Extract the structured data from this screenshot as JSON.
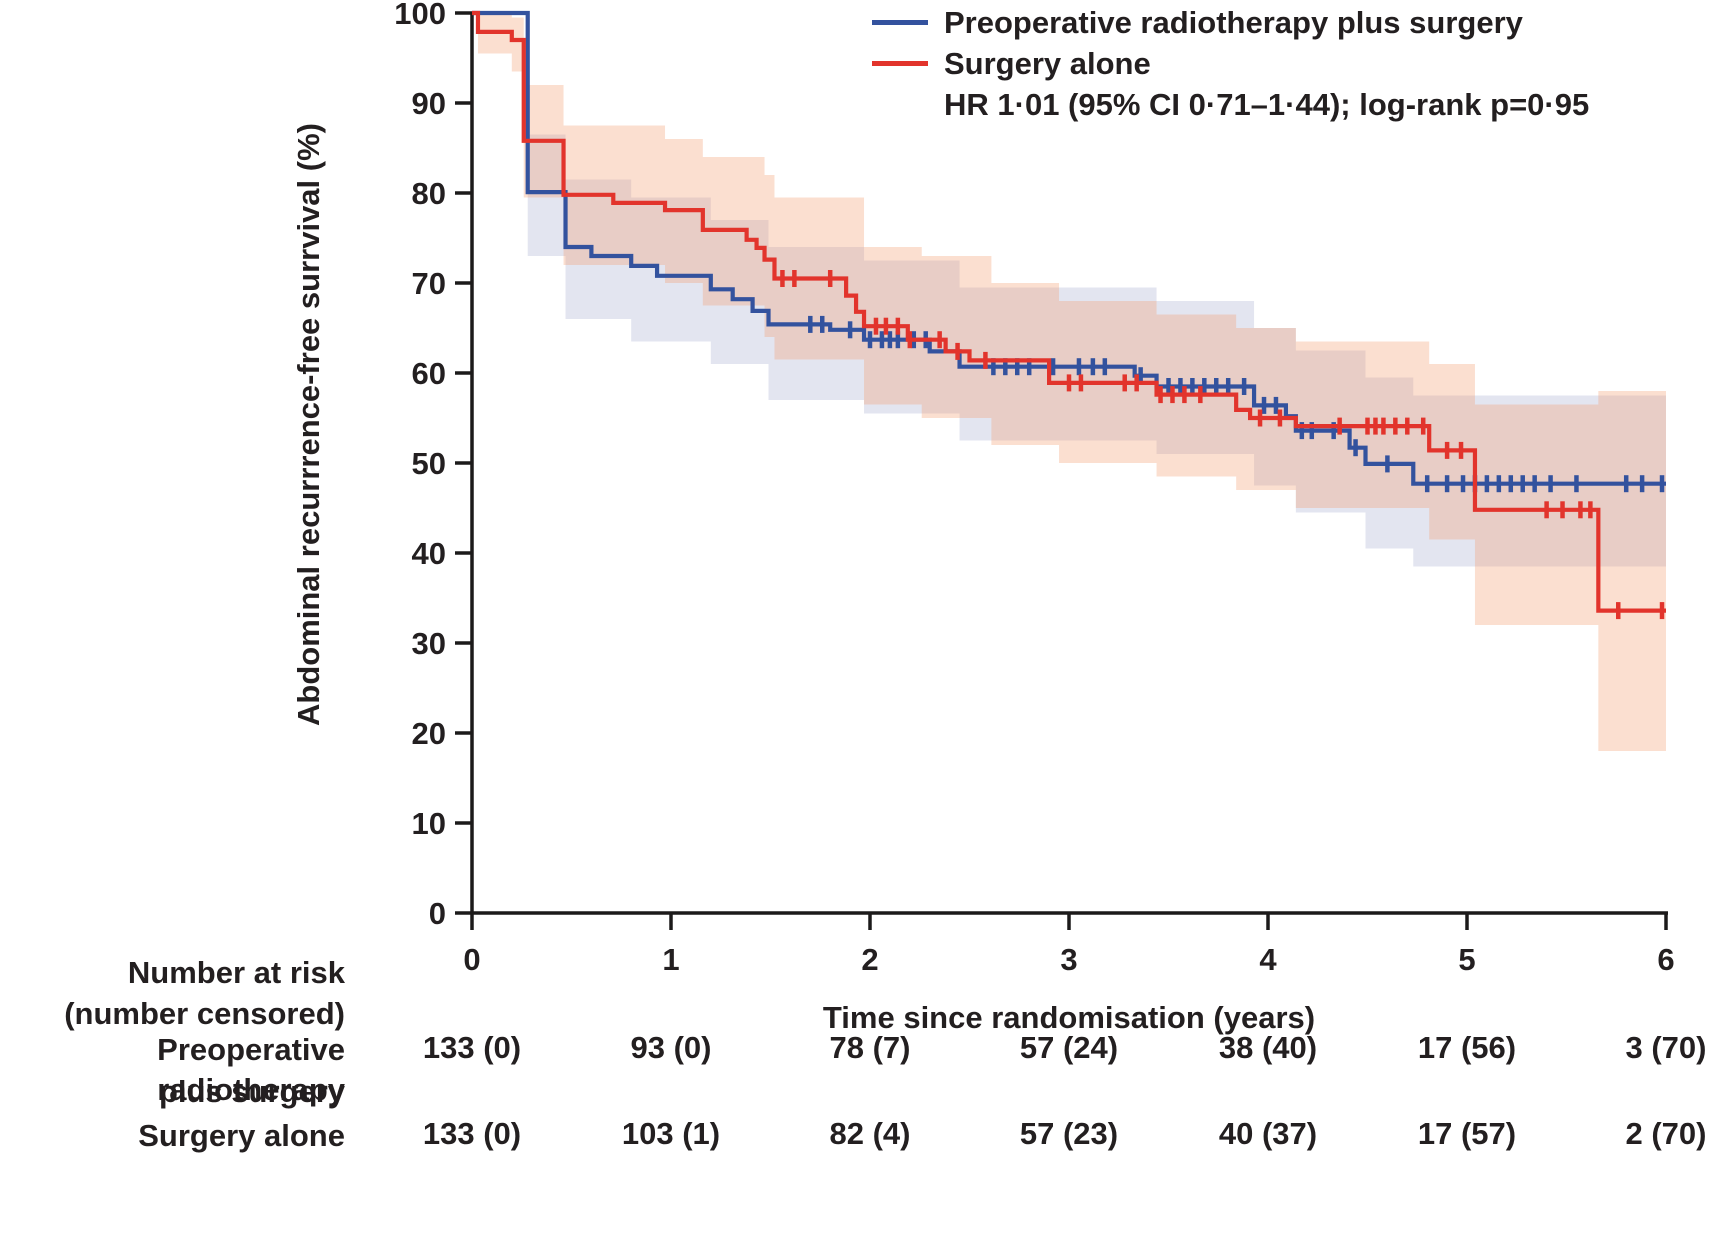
{
  "figure": {
    "ylabel": "Abdominal recurrrence-free surrvival (%)",
    "xlabel": "Time since randomisation (years)"
  },
  "chart_data": {
    "type": "line",
    "variant": "kaplan-meier-step-with-confidence-bands",
    "title": "",
    "xlabel": "Time since randomisation (years)",
    "ylabel": "Abdominal recurrrence-free surrvival (%)",
    "xlim": [
      0,
      6
    ],
    "ylim": [
      0,
      100
    ],
    "x_ticks": [
      0,
      1,
      2,
      3,
      4,
      5,
      6
    ],
    "y_ticks": [
      0,
      10,
      20,
      30,
      40,
      50,
      60,
      70,
      80,
      90,
      100
    ],
    "grid": false,
    "legend_position": "top-right",
    "annotation": "HR 1·01 (95% CI 0·71–1·44); log-rank p=0·95",
    "axis_color": "#1c1a1a",
    "series": [
      {
        "name": "Preoperative radiotherapy plus surgery",
        "color": "#33529e",
        "ci_fill": "#e3e5f0",
        "steps": [
          [
            0,
            100
          ],
          [
            0.28,
            80.1
          ],
          [
            0.47,
            74.0
          ],
          [
            0.6,
            73.0
          ],
          [
            0.8,
            71.9
          ],
          [
            0.93,
            70.8
          ],
          [
            1.2,
            69.3
          ],
          [
            1.31,
            68.2
          ],
          [
            1.41,
            66.9
          ],
          [
            1.49,
            65.4
          ],
          [
            1.8,
            64.8
          ],
          [
            1.97,
            63.7
          ],
          [
            2.3,
            62.4
          ],
          [
            2.45,
            60.7
          ],
          [
            3.33,
            59.7
          ],
          [
            3.44,
            58.5
          ],
          [
            3.93,
            56.4
          ],
          [
            4.09,
            55.2
          ],
          [
            4.14,
            53.6
          ],
          [
            4.41,
            51.7
          ],
          [
            4.49,
            49.9
          ],
          [
            4.73,
            47.7
          ]
        ],
        "end_time": 6.0,
        "censor_times": [
          1.7,
          1.76,
          1.9,
          2.0,
          2.06,
          2.1,
          2.14,
          2.22,
          2.28,
          2.62,
          2.68,
          2.74,
          2.8,
          2.92,
          3.05,
          3.12,
          3.18,
          3.36,
          3.5,
          3.56,
          3.62,
          3.68,
          3.74,
          3.8,
          3.88,
          3.98,
          4.04,
          4.17,
          4.22,
          4.33,
          4.44,
          4.6,
          4.8,
          4.9,
          4.98,
          5.04,
          5.1,
          5.16,
          5.22,
          5.28,
          5.34,
          5.42,
          5.55,
          5.8,
          5.88,
          5.98
        ],
        "ci_steps": [
          [
            0.28,
            86.5,
            73.0
          ],
          [
            0.47,
            81.5,
            66.0
          ],
          [
            0.8,
            79.5,
            63.5
          ],
          [
            1.2,
            77.0,
            61.0
          ],
          [
            1.49,
            74.0,
            57.0
          ],
          [
            1.97,
            72.5,
            55.5
          ],
          [
            2.45,
            69.5,
            52.5
          ],
          [
            3.44,
            68.0,
            51.0
          ],
          [
            3.93,
            65.0,
            47.5
          ],
          [
            4.14,
            62.5,
            44.5
          ],
          [
            4.49,
            59.5,
            40.5
          ],
          [
            4.73,
            57.5,
            38.5
          ]
        ]
      },
      {
        "name": "Surgery alone",
        "color": "#e2342c",
        "ci_fill": "rgba(243,158,112,0.33)",
        "steps": [
          [
            0,
            100
          ],
          [
            0.03,
            97.9
          ],
          [
            0.2,
            97.0
          ],
          [
            0.26,
            85.8
          ],
          [
            0.46,
            79.8
          ],
          [
            0.71,
            78.9
          ],
          [
            0.97,
            78.1
          ],
          [
            1.16,
            75.9
          ],
          [
            1.38,
            74.8
          ],
          [
            1.43,
            73.9
          ],
          [
            1.47,
            72.6
          ],
          [
            1.52,
            70.5
          ],
          [
            1.88,
            68.6
          ],
          [
            1.93,
            66.8
          ],
          [
            1.97,
            65.2
          ],
          [
            2.19,
            63.7
          ],
          [
            2.38,
            62.4
          ],
          [
            2.5,
            61.4
          ],
          [
            2.9,
            58.9
          ],
          [
            3.44,
            57.6
          ],
          [
            3.84,
            55.9
          ],
          [
            3.91,
            55.0
          ],
          [
            4.14,
            54.1
          ],
          [
            4.81,
            51.4
          ],
          [
            5.04,
            44.8
          ],
          [
            5.66,
            33.6
          ]
        ],
        "end_time": 6.0,
        "censor_times": [
          1.56,
          1.62,
          1.8,
          2.03,
          2.08,
          2.14,
          2.2,
          2.35,
          2.44,
          2.58,
          3.0,
          3.06,
          3.28,
          3.34,
          3.46,
          3.52,
          3.58,
          3.66,
          3.96,
          4.06,
          4.36,
          4.5,
          4.54,
          4.58,
          4.64,
          4.7,
          4.78,
          4.9,
          4.97,
          5.4,
          5.48,
          5.57,
          5.62,
          5.76,
          5.98
        ],
        "ci_steps": [
          [
            0.03,
            100,
            95.5
          ],
          [
            0.2,
            99.5,
            93.5
          ],
          [
            0.26,
            92.0,
            79.5
          ],
          [
            0.46,
            87.5,
            72.0
          ],
          [
            0.97,
            86.0,
            70.0
          ],
          [
            1.16,
            84.0,
            67.5
          ],
          [
            1.47,
            82.0,
            64.0
          ],
          [
            1.52,
            79.5,
            61.5
          ],
          [
            1.97,
            74.0,
            56.5
          ],
          [
            2.26,
            73.0,
            55.0
          ],
          [
            2.61,
            70.0,
            52.0
          ],
          [
            2.95,
            68.0,
            50.0
          ],
          [
            3.44,
            66.5,
            48.5
          ],
          [
            3.84,
            65.0,
            47.0
          ],
          [
            4.14,
            63.5,
            45.0
          ],
          [
            4.81,
            61.0,
            41.5
          ],
          [
            5.04,
            56.5,
            32.0
          ],
          [
            5.66,
            58.0,
            18.0
          ]
        ]
      }
    ],
    "risk_table": {
      "header_line1": "Number at risk",
      "header_line2": "(number censored)",
      "rows": [
        {
          "label_line1": "Preoperative radiotherapy",
          "label_line2": "plus surgery",
          "values": [
            "133 (0)",
            "93 (0)",
            "78 (7)",
            "57 (24)",
            "38 (40)",
            "17 (56)",
            "3 (70)"
          ]
        },
        {
          "label_line1": "Surgery alone",
          "label_line2": "",
          "values": [
            "133 (0)",
            "103 (1)",
            "82 (4)",
            "57 (23)",
            "40 (37)",
            "17 (57)",
            "2 (70)"
          ]
        }
      ]
    }
  }
}
